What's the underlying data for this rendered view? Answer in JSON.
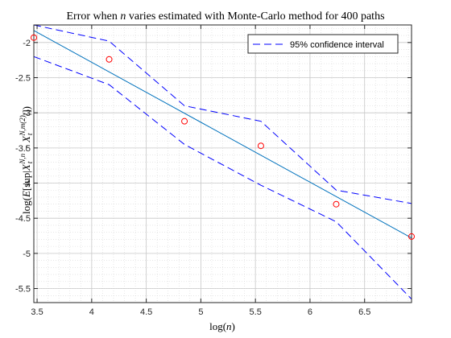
{
  "chart_data": {
    "type": "line",
    "title": "Error when n varies estimated with Monte-Carlo method for 400 paths",
    "xlabel": "log(n)",
    "ylabel": "log(E[sup|X_t^{N,n} − X_t^{N,m(2)}|])",
    "xlim": [
      3.47,
      6.93
    ],
    "ylim": [
      -5.7,
      -1.75
    ],
    "grid": true,
    "minor_grid": true,
    "legend_position": "top-right",
    "x_ticks": [
      {
        "value": 3.5,
        "label": "3.5"
      },
      {
        "value": 4,
        "label": "4"
      },
      {
        "value": 4.5,
        "label": "4.5"
      },
      {
        "value": 5,
        "label": "5"
      },
      {
        "value": 5.5,
        "label": "5.5"
      },
      {
        "value": 6,
        "label": "6"
      },
      {
        "value": 6.5,
        "label": "6.5"
      }
    ],
    "y_ticks": [
      {
        "value": -2,
        "label": "-2"
      },
      {
        "value": -2.5,
        "label": "-2.5"
      },
      {
        "value": -3,
        "label": "-3"
      },
      {
        "value": -3.5,
        "label": "-3.5"
      },
      {
        "value": -4,
        "label": "-4"
      },
      {
        "value": -4.5,
        "label": "-4.5"
      },
      {
        "value": -5,
        "label": "-5"
      },
      {
        "value": -5.5,
        "label": "-5.5"
      }
    ],
    "series": [
      {
        "kind": "scatter",
        "color": "#ff0000",
        "x": [
          3.47,
          4.16,
          4.85,
          5.55,
          6.24,
          6.93
        ],
        "y": [
          -1.93,
          -2.24,
          -3.12,
          -3.47,
          -4.3,
          -4.76
        ]
      },
      {
        "kind": "line",
        "color": "#0072bd",
        "x": [
          3.47,
          6.93
        ],
        "y": [
          -1.83,
          -4.78
        ]
      },
      {
        "name": "95% confidence interval",
        "kind": "dashed",
        "color": "#0000ff",
        "x": [
          3.47,
          4.16,
          4.85,
          5.55,
          6.24,
          6.93
        ],
        "y": [
          -1.75,
          -1.98,
          -2.9,
          -3.12,
          -4.1,
          -4.29
        ]
      },
      {
        "kind": "dashed",
        "color": "#0000ff",
        "x": [
          3.47,
          4.16,
          4.85,
          5.55,
          6.24,
          6.93
        ],
        "y": [
          -2.2,
          -2.6,
          -3.45,
          -4.03,
          -4.55,
          -5.65
        ]
      }
    ]
  }
}
